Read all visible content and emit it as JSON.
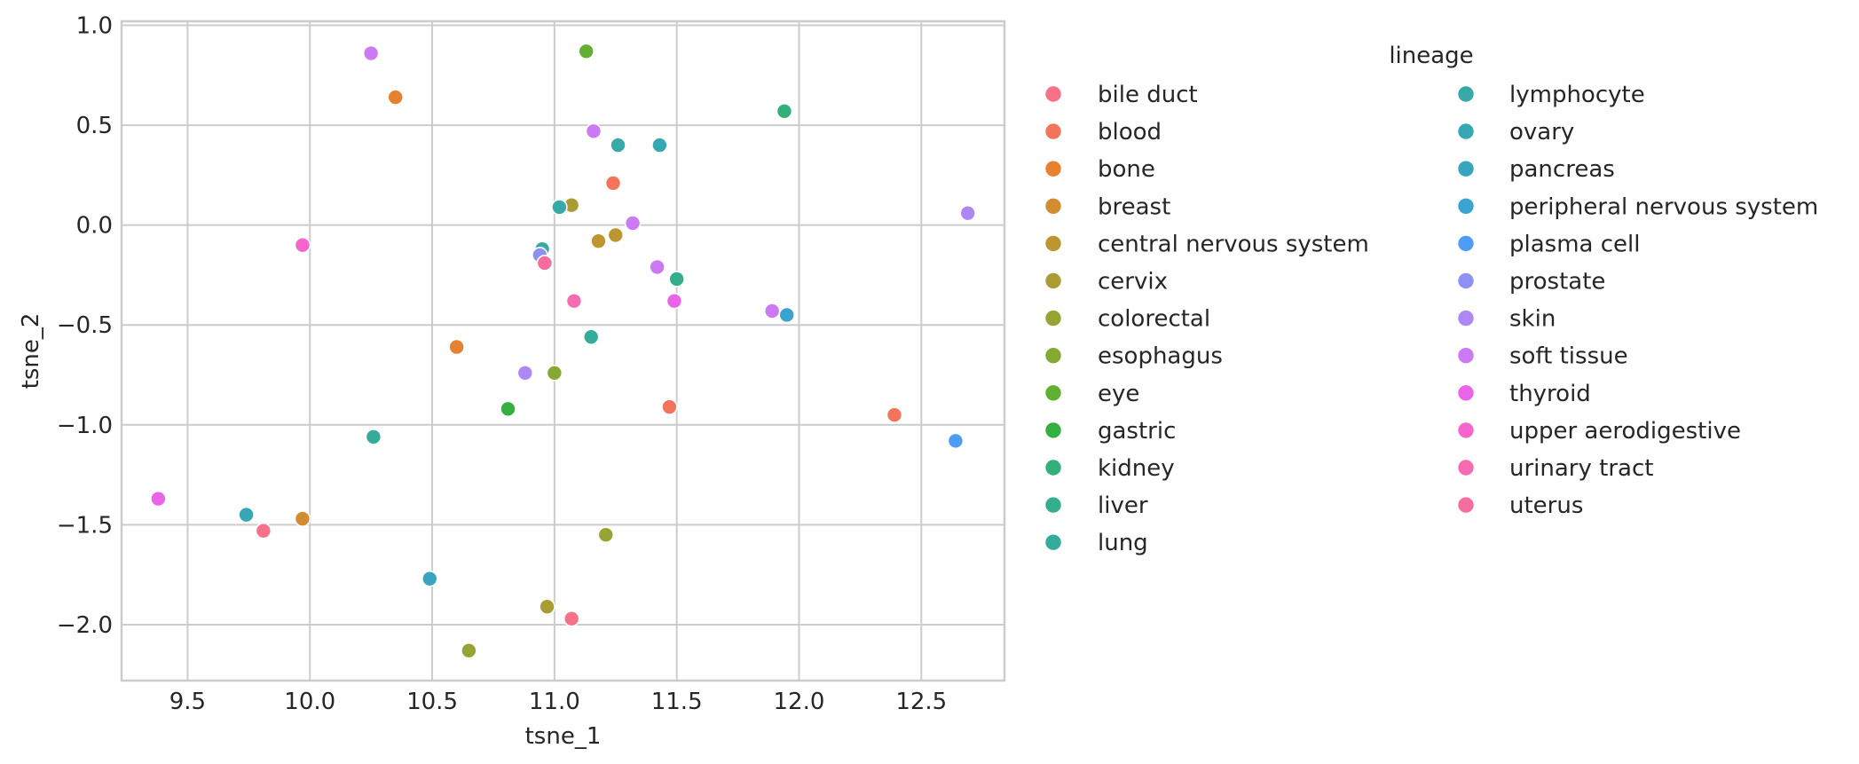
{
  "chart_data": {
    "type": "scatter",
    "xlabel": "tsne_1",
    "ylabel": "tsne_2",
    "xlim": [
      9.23,
      12.84
    ],
    "ylim": [
      -2.28,
      1.02
    ],
    "x_ticks": [
      "9.5",
      "10.0",
      "10.5",
      "11.0",
      "11.5",
      "12.0",
      "12.5"
    ],
    "x_tick_values": [
      9.5,
      10.0,
      10.5,
      11.0,
      11.5,
      12.0,
      12.5
    ],
    "y_ticks": [
      "1.0",
      "0.5",
      "0.0",
      "−0.5",
      "−1.0",
      "−1.5",
      "−2.0"
    ],
    "y_tick_values": [
      1.0,
      0.5,
      0.0,
      -0.5,
      -1.0,
      -1.5,
      -2.0
    ],
    "grid": true,
    "legend": {
      "title": "lineage",
      "placement": "outside-right",
      "columns": 2
    },
    "series": [
      {
        "name": "bile duct",
        "color": "#f77189",
        "points": [
          [
            9.81,
            -1.53
          ],
          [
            11.07,
            -1.97
          ]
        ]
      },
      {
        "name": "blood",
        "color": "#f2745b",
        "points": [
          [
            11.24,
            0.21
          ],
          [
            11.47,
            -0.91
          ],
          [
            12.39,
            -0.95
          ]
        ]
      },
      {
        "name": "bone",
        "color": "#e6812f",
        "points": [
          [
            10.35,
            0.64
          ],
          [
            10.6,
            -0.61
          ]
        ]
      },
      {
        "name": "breast",
        "color": "#d38d31",
        "points": [
          [
            9.97,
            -1.47
          ]
        ]
      },
      {
        "name": "central nervous system",
        "color": "#bd9631",
        "points": [
          [
            11.18,
            -0.08
          ],
          [
            11.25,
            -0.05
          ]
        ]
      },
      {
        "name": "cervix",
        "color": "#aa9c33",
        "points": [
          [
            10.97,
            -1.91
          ],
          [
            11.07,
            0.1
          ]
        ]
      },
      {
        "name": "colorectal",
        "color": "#97a332",
        "points": [
          [
            11.21,
            -1.55
          ],
          [
            10.65,
            -2.13
          ]
        ]
      },
      {
        "name": "esophagus",
        "color": "#86a932",
        "points": [
          [
            11.0,
            -0.74
          ]
        ]
      },
      {
        "name": "eye",
        "color": "#62b032",
        "points": [
          [
            11.13,
            0.87
          ]
        ]
      },
      {
        "name": "gastric",
        "color": "#33b040",
        "points": [
          [
            10.81,
            -0.92
          ]
        ]
      },
      {
        "name": "kidney",
        "color": "#33b07a",
        "points": [
          [
            11.94,
            0.57
          ]
        ]
      },
      {
        "name": "liver",
        "color": "#34ae8d",
        "points": [
          [
            11.5,
            -0.27
          ]
        ]
      },
      {
        "name": "lung",
        "color": "#35ab9c",
        "points": [
          [
            11.15,
            -0.56
          ],
          [
            10.26,
            -1.06
          ]
        ]
      },
      {
        "name": "lymphocyte",
        "color": "#36a9a8",
        "points": [
          [
            10.95,
            -0.12
          ],
          [
            11.26,
            0.4
          ],
          [
            11.02,
            0.09
          ]
        ]
      },
      {
        "name": "ovary",
        "color": "#37a7b3",
        "points": [
          [
            11.43,
            0.4
          ],
          [
            9.74,
            -1.45
          ]
        ]
      },
      {
        "name": "pancreas",
        "color": "#38a4be",
        "points": [
          [
            10.49,
            -1.77
          ]
        ]
      },
      {
        "name": "peripheral nervous system",
        "color": "#3ba3d0",
        "points": [
          [
            11.95,
            -0.45
          ]
        ]
      },
      {
        "name": "plasma cell",
        "color": "#4f9cf4",
        "points": [
          [
            12.64,
            -1.08
          ]
        ]
      },
      {
        "name": "prostate",
        "color": "#8e91f4",
        "points": [
          [
            10.94,
            -0.15
          ]
        ]
      },
      {
        "name": "skin",
        "color": "#ad87f4",
        "points": [
          [
            10.88,
            -0.74
          ],
          [
            12.69,
            0.06
          ]
        ]
      },
      {
        "name": "soft tissue",
        "color": "#cc79f4",
        "points": [
          [
            10.25,
            0.86
          ],
          [
            11.16,
            0.47
          ],
          [
            11.32,
            0.01
          ],
          [
            11.42,
            -0.21
          ],
          [
            11.89,
            -0.43
          ]
        ]
      },
      {
        "name": "thyroid",
        "color": "#ea64e9",
        "points": [
          [
            9.38,
            -1.37
          ],
          [
            11.49,
            -0.38
          ]
        ]
      },
      {
        "name": "upper aerodigestive",
        "color": "#f565cc",
        "points": [
          [
            9.97,
            -0.1
          ]
        ]
      },
      {
        "name": "urinary tract",
        "color": "#f66bb1",
        "points": [
          [
            11.08,
            -0.38
          ]
        ]
      },
      {
        "name": "uterus",
        "color": "#f56c9e",
        "points": [
          [
            10.96,
            -0.19
          ]
        ]
      }
    ]
  }
}
